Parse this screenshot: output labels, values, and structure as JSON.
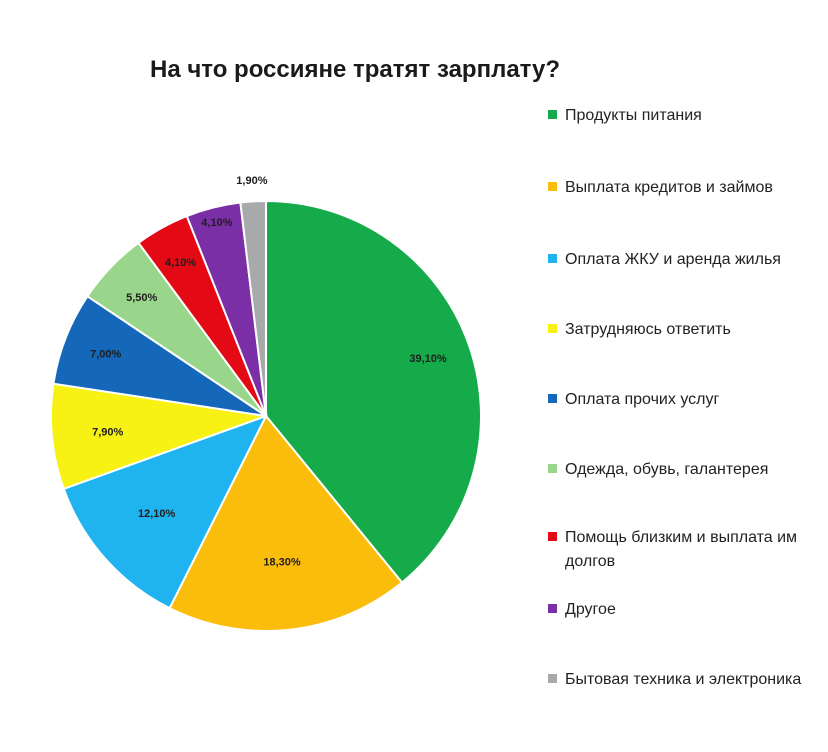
{
  "chart_data": {
    "type": "pie",
    "title": "На что россияне тратят зарплату?",
    "slices": [
      {
        "label": "Продукты питания",
        "value": 39.1,
        "display": "39,10%",
        "color": "#16ab4a"
      },
      {
        "label": "Выплата кредитов и займов",
        "value": 18.3,
        "display": "18,30%",
        "color": "#fbbd0c"
      },
      {
        "label": "Оплата ЖКУ и аренда жилья",
        "value": 12.1,
        "display": "12,10%",
        "color": "#1fb3ef"
      },
      {
        "label": "Затрудняюсь ответить",
        "value": 7.9,
        "display": "7,90%",
        "color": "#f7f213"
      },
      {
        "label": "Оплата прочих услуг",
        "value": 7.0,
        "display": "7,00%",
        "color": "#1567ba"
      },
      {
        "label": "Одежда, обувь, галантерея",
        "value": 5.5,
        "display": "5,50%",
        "color": "#99d68b"
      },
      {
        "label": "Помощь близким и выплата им долгов",
        "value": 4.1,
        "display": "4,10%",
        "color": "#e30a16"
      },
      {
        "label": "Другое",
        "value": 4.1,
        "display": "4,10%",
        "color": "#7b2fa6"
      },
      {
        "label": "Бытовая техника и электроника",
        "value": 1.9,
        "display": "1,90%",
        "color": "#a7a9ab"
      }
    ],
    "start_angle": "12 o'clock",
    "direction": "clockwise",
    "legend_position": "right"
  }
}
